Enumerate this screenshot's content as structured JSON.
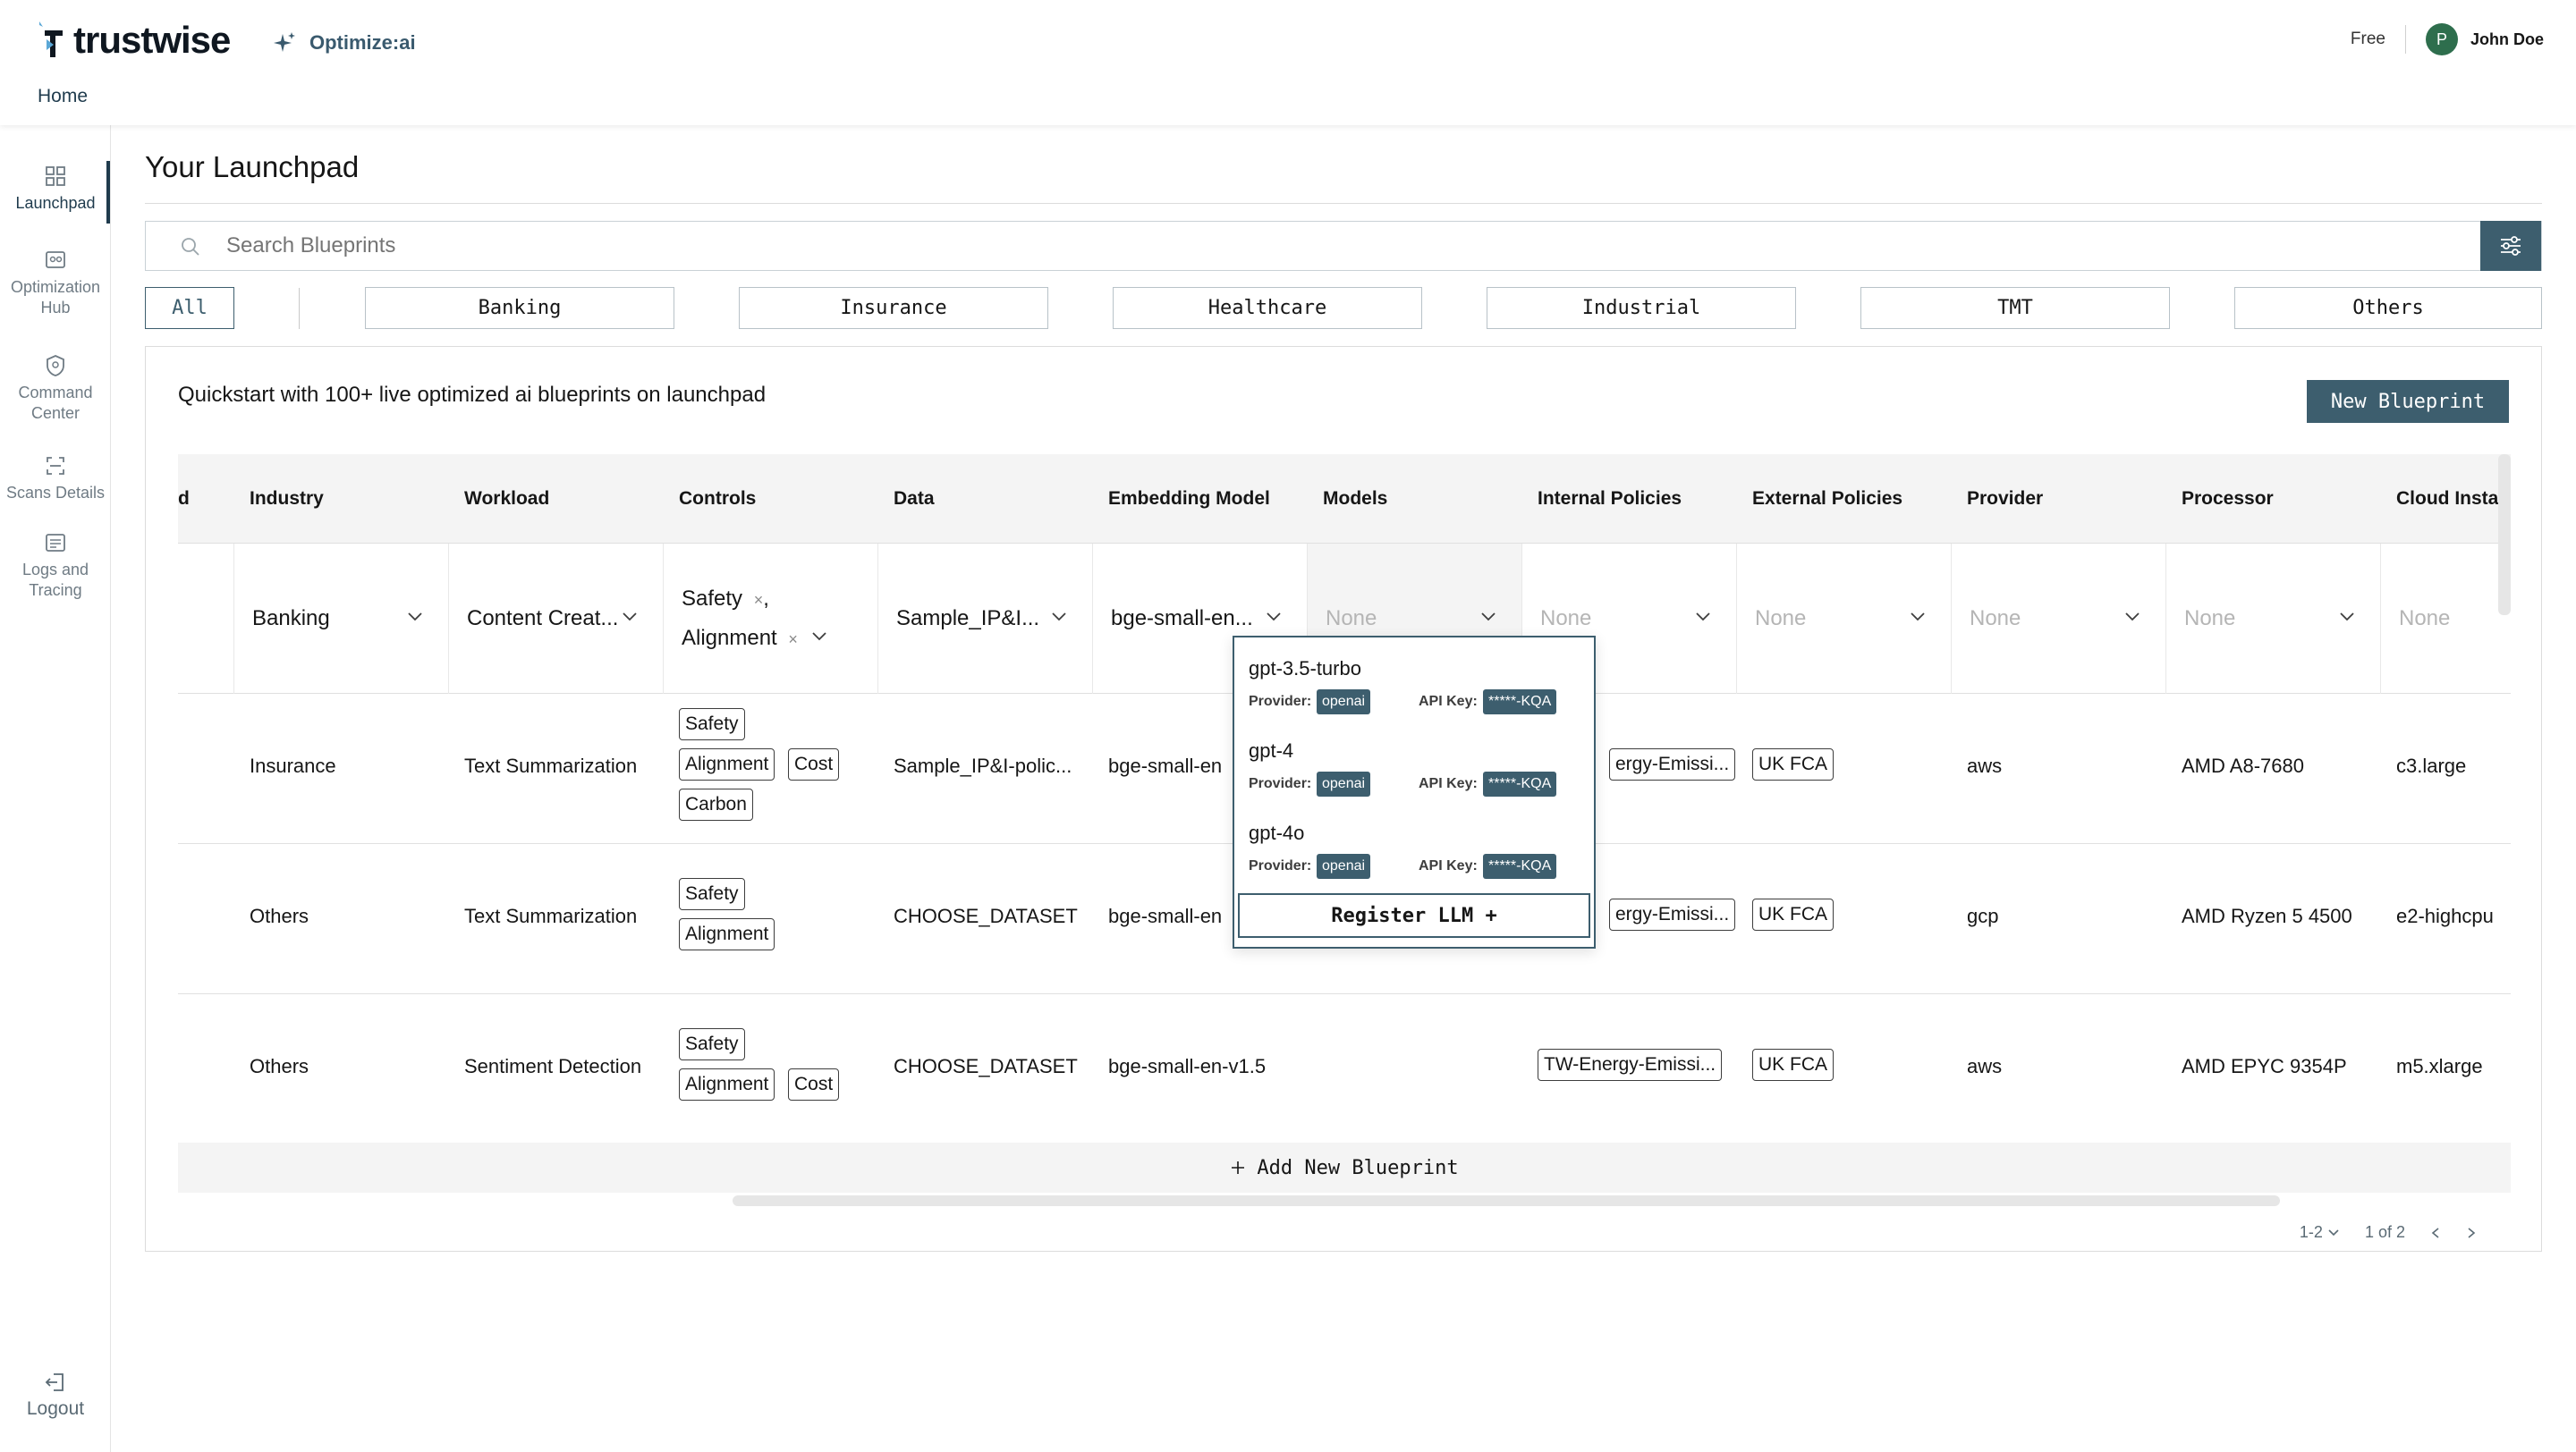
{
  "brand": {
    "name": "trustwise",
    "product": "Optimize:ai"
  },
  "header": {
    "home": "Home",
    "plan": "Free",
    "avatar_initial": "P",
    "user": "John Doe"
  },
  "sidebar": {
    "items": [
      {
        "label_1": "Launchpad",
        "label_2": "",
        "icon": "grid-icon"
      },
      {
        "label_1": "Optimization",
        "label_2": "Hub",
        "icon": "hub-icon"
      },
      {
        "label_1": "Command",
        "label_2": "Center",
        "icon": "shield-icon"
      },
      {
        "label_1": "Scans Details",
        "label_2": "",
        "icon": "scan-icon"
      },
      {
        "label_1": "Logs and",
        "label_2": "Tracing",
        "icon": "logs-icon"
      }
    ],
    "logout": "Logout"
  },
  "page": {
    "title": "Your Launchpad",
    "search_placeholder": "Search Blueprints",
    "chips": [
      "All",
      "Banking",
      "Insurance",
      "Healthcare",
      "Industrial",
      "TMT",
      "Others"
    ],
    "quickstart": "Quickstart with 100+ live optimized ai blueprints on launchpad",
    "new_blueprint": "New Blueprint"
  },
  "table": {
    "headers": [
      "d",
      "Industry",
      "Workload",
      "Controls",
      "Data",
      "Embedding Model",
      "Models",
      "Internal Policies",
      "External Policies",
      "Provider",
      "Processor",
      "Cloud Insta"
    ],
    "edit_row": {
      "industry": "Banking",
      "workload": "Content Creat...",
      "control_1": "Safety",
      "control_2": "Alignment",
      "data": "Sample_IP&I...",
      "embedding": "bge-small-en...",
      "placeholder": "None",
      "remove": "×",
      "comma": ","
    },
    "rows": [
      {
        "industry": "Insurance",
        "workload": "Text Summarization",
        "controls": [
          "Safety",
          "Alignment",
          "Cost",
          "Carbon"
        ],
        "data": "Sample_IP&I-polic...",
        "embedding": "bge-small-en",
        "internal": "ergy-Emissi...",
        "external": "UK FCA",
        "provider": "aws",
        "processor": "AMD A8-7680",
        "cloud": "c3.large"
      },
      {
        "industry": "Others",
        "workload": "Text Summarization",
        "controls": [
          "Safety",
          "Alignment"
        ],
        "data": "CHOOSE_DATASET",
        "embedding": "bge-small-en",
        "internal": "ergy-Emissi...",
        "external": "UK FCA",
        "provider": "gcp",
        "processor": "AMD Ryzen 5 4500",
        "cloud": "e2-highcpu"
      },
      {
        "industry": "Others",
        "workload": "Sentiment Detection",
        "controls": [
          "Safety",
          "Alignment",
          "Cost"
        ],
        "data": "CHOOSE_DATASET",
        "embedding": "bge-small-en-v1.5",
        "internal": "TW-Energy-Emissi...",
        "external": "UK FCA",
        "provider": "aws",
        "processor": "AMD EPYC 9354P",
        "cloud": "m5.xlarge"
      }
    ],
    "add_new": "Add New Blueprint",
    "pager_range": "1-2",
    "pager_pages": "1 of 2"
  },
  "model_dropdown": {
    "provider_label": "Provider:",
    "api_key_label": "API Key:",
    "options": [
      {
        "name": "gpt-3.5-turbo",
        "provider": "openai",
        "api_key": "*****-KQA"
      },
      {
        "name": "gpt-4",
        "provider": "openai",
        "api_key": "*****-KQA"
      },
      {
        "name": "gpt-4o",
        "provider": "openai",
        "api_key": "*****-KQA"
      }
    ],
    "register": "Register LLM +"
  },
  "colors": {
    "accent": "#3d5e6e",
    "avatar": "#2e6e4d",
    "placeholder": "#b5b5b5"
  }
}
